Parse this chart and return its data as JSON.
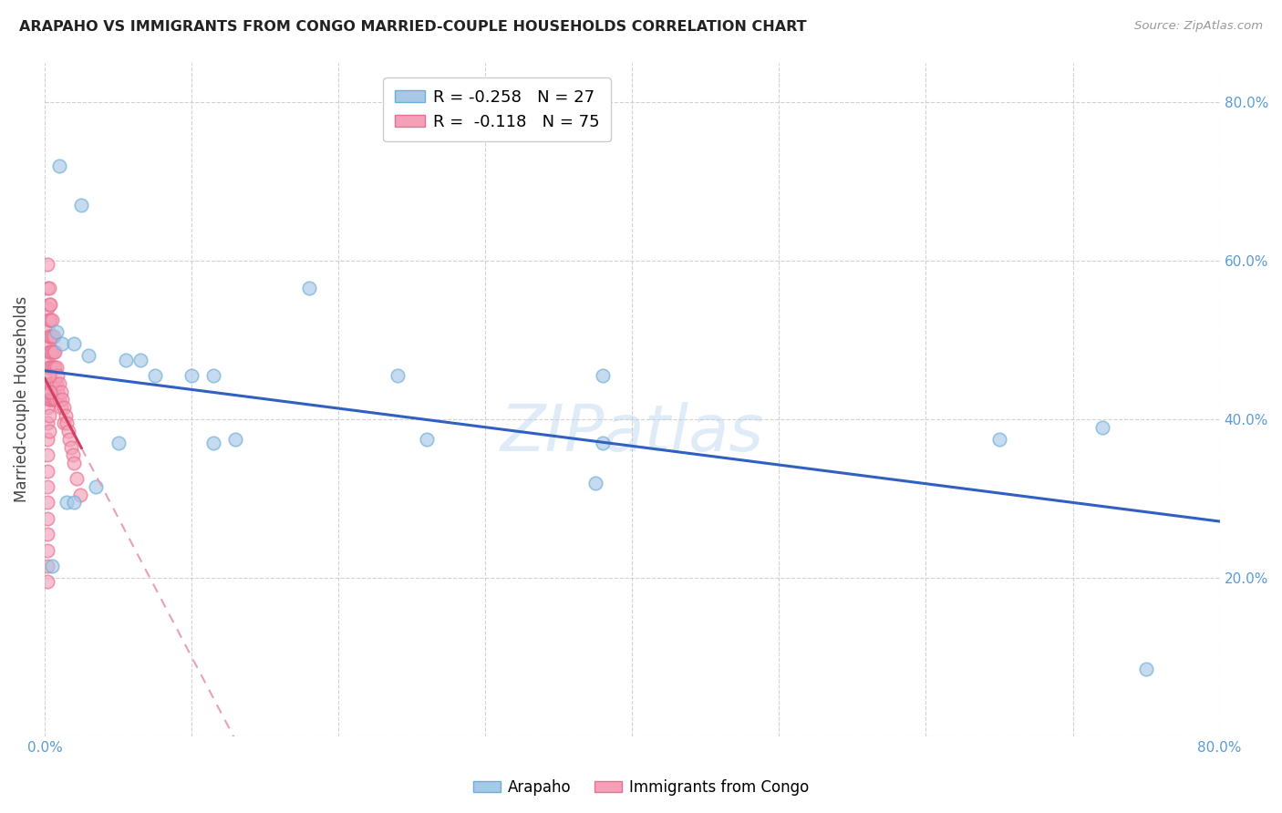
{
  "title": "ARAPAHO VS IMMIGRANTS FROM CONGO MARRIED-COUPLE HOUSEHOLDS CORRELATION CHART",
  "source": "Source: ZipAtlas.com",
  "ylabel": "Married-couple Households",
  "xlim": [
    0.0,
    0.8
  ],
  "ylim": [
    0.0,
    0.85
  ],
  "arapaho_color": "#a8c8e8",
  "congo_color": "#f4a0b8",
  "arapaho_edge_color": "#6baed6",
  "congo_edge_color": "#e87090",
  "arapaho_line_color": "#3060c0",
  "congo_line_color": "#d04060",
  "congo_dash_color": "#e8a0b8",
  "watermark": "ZIPatlas",
  "legend_R_arapaho": "R = -0.258",
  "legend_N_arapaho": "N = 27",
  "legend_R_congo": "R =  -0.118",
  "legend_N_congo": "N = 75",
  "arapaho_x": [
    0.01,
    0.025,
    0.008,
    0.012,
    0.02,
    0.03,
    0.055,
    0.065,
    0.075,
    0.1,
    0.115,
    0.13,
    0.18,
    0.24,
    0.26,
    0.38,
    0.38,
    0.65,
    0.72,
    0.005,
    0.015,
    0.02,
    0.035,
    0.05,
    0.115,
    0.375,
    0.75
  ],
  "arapaho_y": [
    0.72,
    0.67,
    0.51,
    0.495,
    0.495,
    0.48,
    0.475,
    0.475,
    0.455,
    0.455,
    0.455,
    0.375,
    0.565,
    0.455,
    0.375,
    0.455,
    0.37,
    0.375,
    0.39,
    0.215,
    0.295,
    0.295,
    0.315,
    0.37,
    0.37,
    0.32,
    0.085
  ],
  "congo_x": [
    0.002,
    0.002,
    0.002,
    0.002,
    0.002,
    0.002,
    0.002,
    0.002,
    0.002,
    0.002,
    0.002,
    0.002,
    0.002,
    0.002,
    0.002,
    0.002,
    0.002,
    0.002,
    0.002,
    0.002,
    0.003,
    0.003,
    0.003,
    0.003,
    0.003,
    0.003,
    0.003,
    0.003,
    0.003,
    0.003,
    0.004,
    0.004,
    0.004,
    0.004,
    0.004,
    0.004,
    0.004,
    0.005,
    0.005,
    0.005,
    0.005,
    0.005,
    0.005,
    0.006,
    0.006,
    0.006,
    0.006,
    0.006,
    0.007,
    0.007,
    0.007,
    0.007,
    0.008,
    0.008,
    0.008,
    0.009,
    0.009,
    0.01,
    0.01,
    0.011,
    0.011,
    0.012,
    0.013,
    0.013,
    0.014,
    0.015,
    0.016,
    0.017,
    0.018,
    0.019,
    0.02,
    0.022,
    0.024,
    0.003,
    0.004
  ],
  "congo_y": [
    0.595,
    0.565,
    0.54,
    0.515,
    0.495,
    0.475,
    0.455,
    0.435,
    0.415,
    0.395,
    0.375,
    0.355,
    0.335,
    0.315,
    0.295,
    0.275,
    0.255,
    0.235,
    0.215,
    0.195,
    0.565,
    0.545,
    0.525,
    0.505,
    0.485,
    0.465,
    0.445,
    0.425,
    0.405,
    0.385,
    0.545,
    0.525,
    0.505,
    0.485,
    0.465,
    0.445,
    0.425,
    0.525,
    0.505,
    0.485,
    0.465,
    0.445,
    0.425,
    0.505,
    0.485,
    0.465,
    0.445,
    0.425,
    0.485,
    0.465,
    0.445,
    0.425,
    0.465,
    0.445,
    0.425,
    0.455,
    0.435,
    0.445,
    0.425,
    0.435,
    0.415,
    0.425,
    0.415,
    0.395,
    0.405,
    0.395,
    0.385,
    0.375,
    0.365,
    0.355,
    0.345,
    0.325,
    0.305,
    0.455,
    0.435
  ]
}
